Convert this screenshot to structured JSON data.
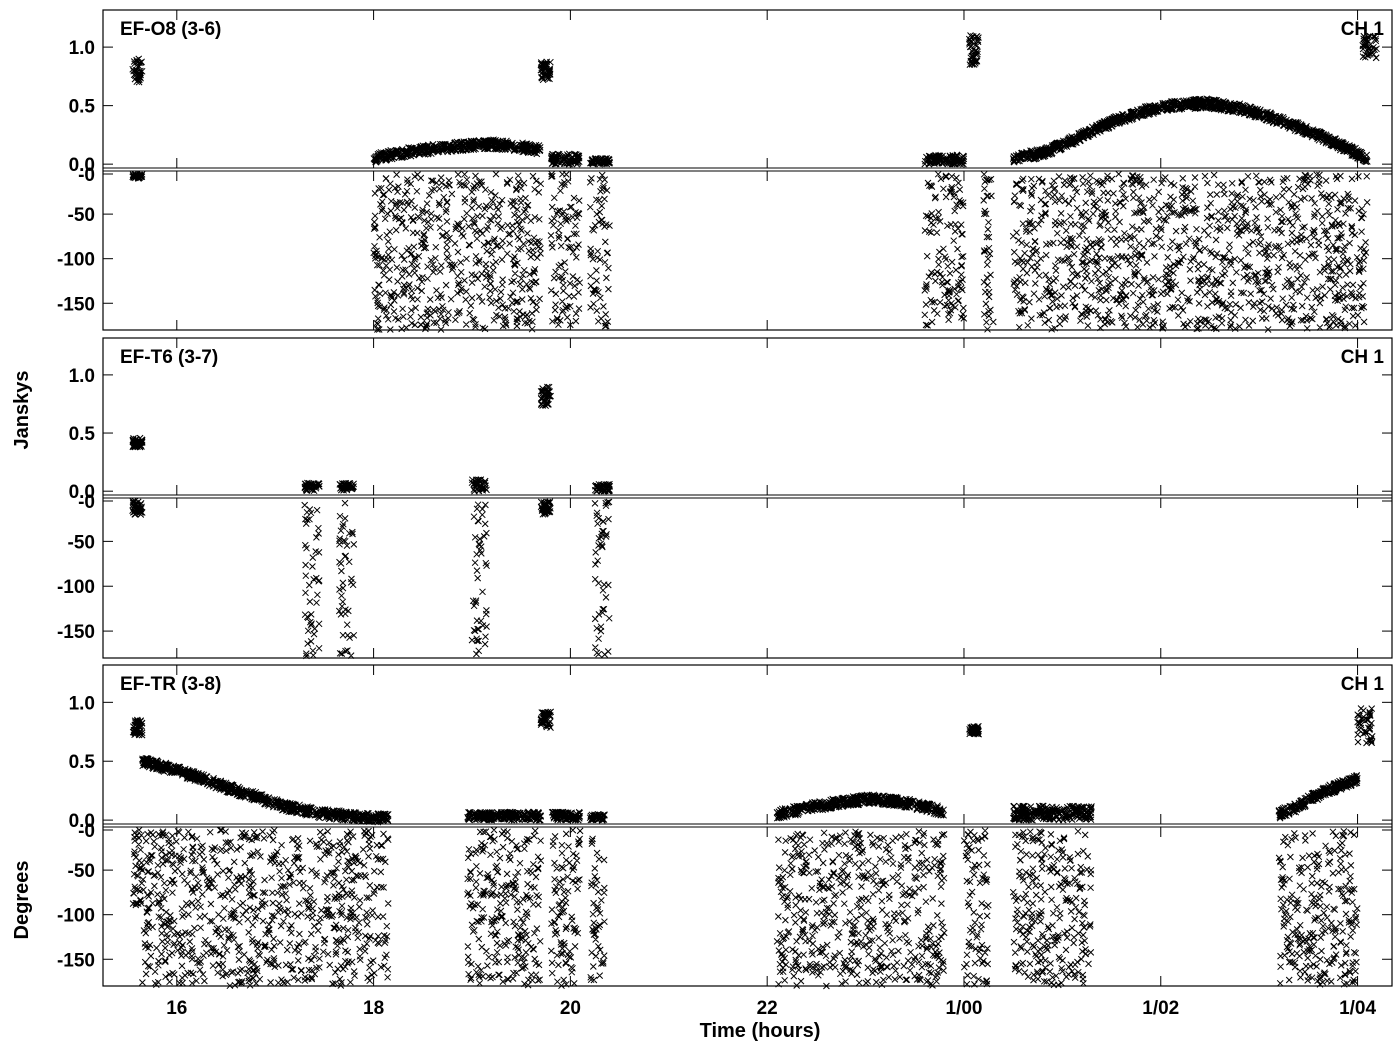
{
  "chart_data": {
    "type": "scatter",
    "marker": "x",
    "marker_color": "#000000",
    "xlabel": "Time (hours)",
    "ylabel_amp": "Janskys",
    "ylabel_phase": "Degrees",
    "x_ticks": [
      {
        "hours": 16,
        "label": "16"
      },
      {
        "hours": 18,
        "label": "18"
      },
      {
        "hours": 20,
        "label": "20"
      },
      {
        "hours": 22,
        "label": "22"
      },
      {
        "hours": 24,
        "label": "1/00"
      },
      {
        "hours": 26,
        "label": "1/02"
      },
      {
        "hours": 28,
        "label": "1/04"
      }
    ],
    "xlim": [
      15.25,
      28.35
    ],
    "amp_ylim": [
      -0.05,
      1.3
    ],
    "amp_ticks": [
      "1.0",
      "0.5",
      "0.0"
    ],
    "phase_ylim": [
      -180,
      -5
    ],
    "phase_ticks": [
      "-0",
      "-50",
      "-100",
      "-150"
    ],
    "panels": [
      {
        "baseline": "EF-O8 (3-6)",
        "channel": "CH 1",
        "amplitude": [
          {
            "start": 15.55,
            "end": 15.65,
            "min": 0.7,
            "max": 0.9
          },
          {
            "start": 18.0,
            "end": 19.7,
            "profile": [
              0.05,
              0.09,
              0.12,
              0.14,
              0.16,
              0.17,
              0.15,
              0.12
            ]
          },
          {
            "start": 19.7,
            "end": 19.8,
            "min": 0.72,
            "max": 0.88
          },
          {
            "start": 19.8,
            "end": 20.1,
            "min": 0.0,
            "max": 0.09
          },
          {
            "start": 20.2,
            "end": 20.4,
            "min": 0.0,
            "max": 0.05
          },
          {
            "start": 23.6,
            "end": 24.0,
            "min": 0.0,
            "max": 0.08
          },
          {
            "start": 24.05,
            "end": 24.15,
            "min": 0.85,
            "max": 1.1
          },
          {
            "start": 24.5,
            "end": 28.1,
            "profile": [
              0.05,
              0.1,
              0.22,
              0.35,
              0.45,
              0.5,
              0.52,
              0.48,
              0.4,
              0.3,
              0.18,
              0.05
            ]
          },
          {
            "start": 28.05,
            "end": 28.2,
            "min": 0.9,
            "max": 1.1
          }
        ],
        "phase": [
          {
            "start": 15.55,
            "end": 15.65,
            "min": -10,
            "max": -5
          },
          {
            "start": 18.0,
            "end": 19.7,
            "min": -180,
            "max": -5
          },
          {
            "start": 19.8,
            "end": 20.1,
            "min": -175,
            "max": -5
          },
          {
            "start": 20.2,
            "end": 20.4,
            "min": -180,
            "max": -5
          },
          {
            "start": 23.6,
            "end": 24.0,
            "min": -175,
            "max": -5
          },
          {
            "start": 24.2,
            "end": 24.3,
            "min": -180,
            "max": -5
          },
          {
            "start": 24.5,
            "end": 28.1,
            "min": -180,
            "max": -5
          }
        ]
      },
      {
        "baseline": "EF-T6 (3-7)",
        "channel": "CH 1",
        "amplitude": [
          {
            "start": 15.55,
            "end": 15.65,
            "min": 0.38,
            "max": 0.46
          },
          {
            "start": 17.3,
            "end": 17.45,
            "min": 0.0,
            "max": 0.07
          },
          {
            "start": 17.65,
            "end": 17.8,
            "min": 0.0,
            "max": 0.07
          },
          {
            "start": 19.0,
            "end": 19.15,
            "min": 0.0,
            "max": 0.1
          },
          {
            "start": 19.7,
            "end": 19.8,
            "min": 0.72,
            "max": 0.9
          },
          {
            "start": 20.25,
            "end": 20.4,
            "min": 0.0,
            "max": 0.06
          }
        ],
        "phase": [
          {
            "start": 15.55,
            "end": 15.65,
            "min": -20,
            "max": -5
          },
          {
            "start": 17.3,
            "end": 17.45,
            "min": -180,
            "max": -5
          },
          {
            "start": 17.65,
            "end": 17.8,
            "min": -180,
            "max": -5
          },
          {
            "start": 19.0,
            "end": 19.15,
            "min": -180,
            "max": -5
          },
          {
            "start": 19.7,
            "end": 19.8,
            "min": -20,
            "max": -5
          },
          {
            "start": 20.25,
            "end": 20.4,
            "min": -180,
            "max": -5
          }
        ]
      },
      {
        "baseline": "EF-TR (3-8)",
        "channel": "CH 1",
        "amplitude": [
          {
            "start": 15.55,
            "end": 15.65,
            "min": 0.72,
            "max": 0.85
          },
          {
            "start": 15.65,
            "end": 18.15,
            "profile": [
              0.5,
              0.42,
              0.32,
              0.22,
              0.12,
              0.06,
              0.03,
              0.02
            ]
          },
          {
            "start": 18.95,
            "end": 19.7,
            "min": 0.0,
            "max": 0.07
          },
          {
            "start": 19.7,
            "end": 19.8,
            "min": 0.78,
            "max": 0.92
          },
          {
            "start": 19.8,
            "end": 20.1,
            "min": 0.0,
            "max": 0.07
          },
          {
            "start": 20.2,
            "end": 20.35,
            "min": 0.0,
            "max": 0.05
          },
          {
            "start": 22.1,
            "end": 23.8,
            "profile": [
              0.05,
              0.09,
              0.13,
              0.16,
              0.18,
              0.16,
              0.12,
              0.07
            ]
          },
          {
            "start": 24.05,
            "end": 24.15,
            "min": 0.72,
            "max": 0.8
          },
          {
            "start": 24.5,
            "end": 25.3,
            "min": 0.0,
            "max": 0.12
          },
          {
            "start": 27.2,
            "end": 28.0,
            "profile": [
              0.05,
              0.1,
              0.18,
              0.25,
              0.3,
              0.35
            ]
          },
          {
            "start": 28.0,
            "end": 28.15,
            "min": 0.65,
            "max": 0.95
          }
        ],
        "phase": [
          {
            "start": 15.55,
            "end": 15.65,
            "min": -90,
            "max": -5
          },
          {
            "start": 15.65,
            "end": 18.15,
            "min": -180,
            "max": -5
          },
          {
            "start": 18.95,
            "end": 19.7,
            "min": -180,
            "max": -5
          },
          {
            "start": 19.8,
            "end": 20.1,
            "min": -180,
            "max": -5
          },
          {
            "start": 20.2,
            "end": 20.35,
            "min": -180,
            "max": -5
          },
          {
            "start": 22.1,
            "end": 23.8,
            "min": -180,
            "max": -5
          },
          {
            "start": 24.0,
            "end": 24.25,
            "min": -180,
            "max": -5
          },
          {
            "start": 24.5,
            "end": 25.3,
            "min": -180,
            "max": -5
          },
          {
            "start": 27.2,
            "end": 28.0,
            "min": -180,
            "max": -5
          }
        ]
      }
    ]
  }
}
